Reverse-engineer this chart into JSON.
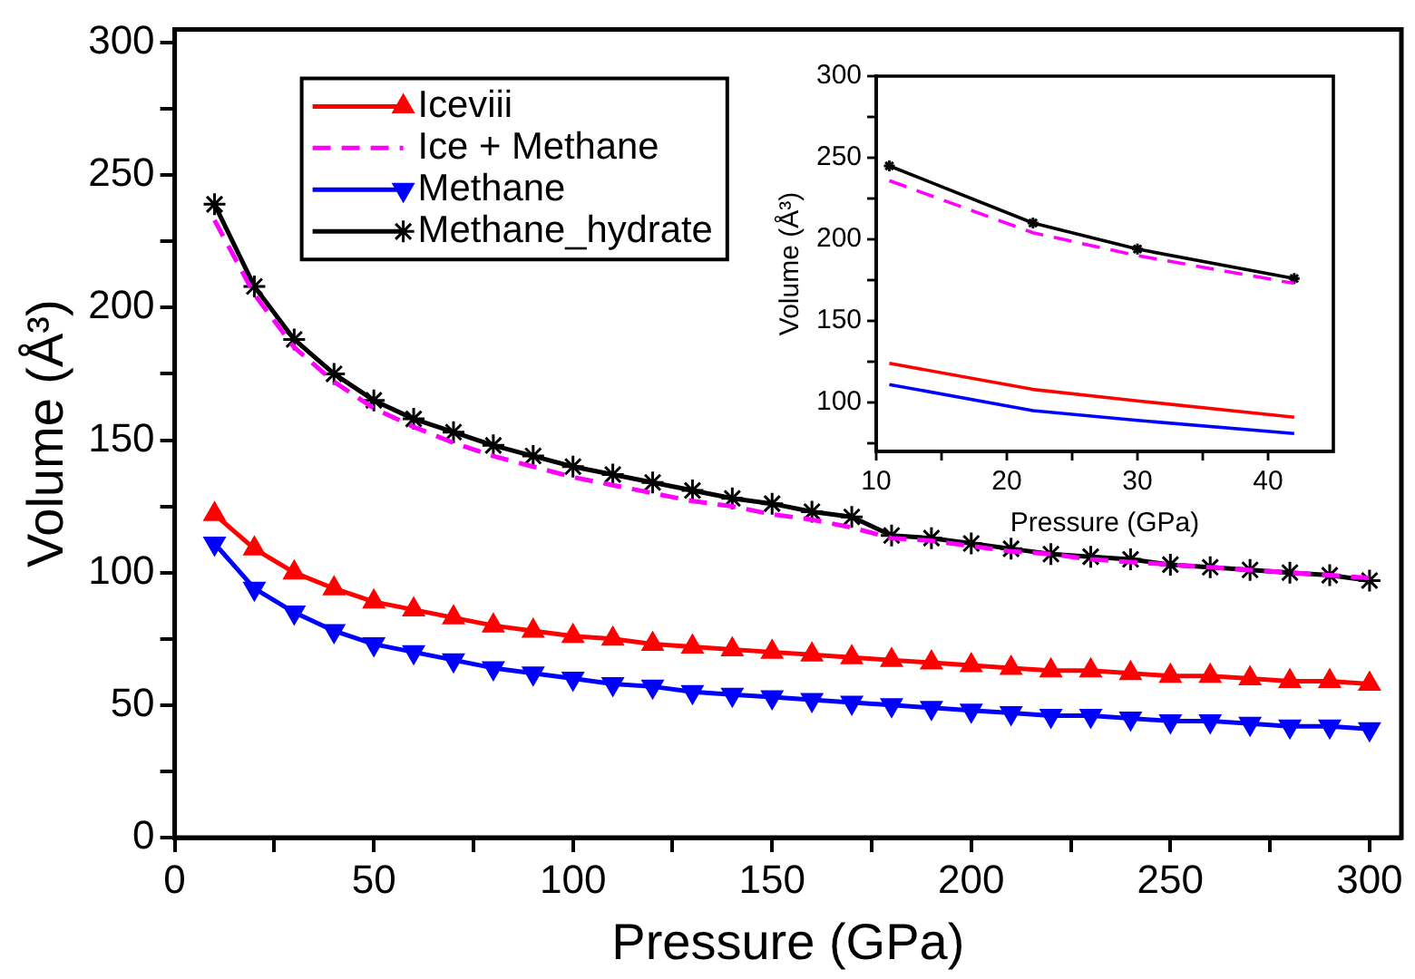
{
  "chart_data": [
    {
      "type": "line",
      "xlabel": "Pressure (GPa)",
      "ylabel": "Volume (Å³)",
      "xlim": [
        0,
        308
      ],
      "ylim": [
        0,
        305
      ],
      "xticks": [
        0,
        {
          "value": 25,
          "label": null
        },
        50,
        {
          "value": 75,
          "label": null
        },
        100,
        {
          "value": 125,
          "label": null
        },
        150,
        {
          "value": 175,
          "label": null
        },
        200,
        {
          "value": 225,
          "label": null
        },
        250,
        {
          "value": 275,
          "label": null
        },
        300
      ],
      "yticks": [
        0,
        {
          "value": 25,
          "label": null
        },
        50,
        {
          "value": 75,
          "label": null
        },
        100,
        {
          "value": 125,
          "label": null
        },
        150,
        {
          "value": 175,
          "label": null
        },
        200,
        {
          "value": 225,
          "label": null
        },
        250,
        {
          "value": 275,
          "label": null
        },
        300
      ],
      "grid": false,
      "legend": "top left",
      "x": [
        10,
        20,
        30,
        40,
        50,
        60,
        70,
        80,
        90,
        100,
        110,
        120,
        130,
        140,
        150,
        160,
        170,
        180,
        190,
        200,
        210,
        220,
        230,
        240,
        250,
        260,
        270,
        280,
        290,
        300
      ],
      "series": [
        {
          "name": "Iceviii",
          "color": "#ff0000",
          "marker": "triangle",
          "line_style": "solid",
          "values": [
            122,
            109,
            100,
            94,
            89,
            86,
            83,
            80,
            78,
            76,
            75,
            73,
            72,
            71,
            70,
            69,
            68,
            67,
            66,
            65,
            64,
            63,
            63,
            62,
            61,
            61,
            60,
            59,
            59,
            58
          ]
        },
        {
          "name": "Ice + Methane",
          "color": "#ff00ff",
          "marker": "none",
          "line_style": "dashed",
          "values": [
            233,
            205,
            185,
            172,
            162,
            155,
            149,
            144,
            140,
            136,
            133,
            130,
            127,
            125,
            122,
            120,
            117,
            113,
            112,
            110,
            108,
            107,
            105,
            104,
            103,
            102,
            101,
            100,
            99,
            98
          ]
        },
        {
          "name": "Methane",
          "color": "#0000ff",
          "marker": "triangle-down",
          "line_style": "solid",
          "values": [
            111,
            94,
            85,
            78,
            73,
            70,
            67,
            64,
            62,
            60,
            58,
            57,
            55,
            54,
            53,
            52,
            51,
            50,
            49,
            48,
            47,
            46,
            46,
            45,
            44,
            44,
            43,
            42,
            42,
            41
          ]
        },
        {
          "name": "Methane_hydrate",
          "color": "#000000",
          "marker": "cross",
          "line_style": "solid",
          "values": [
            239,
            208,
            188,
            175,
            165,
            158,
            153,
            148,
            144,
            140,
            137,
            134,
            131,
            128,
            126,
            123,
            121,
            114,
            113,
            111,
            109,
            107,
            106,
            105,
            103,
            102,
            101,
            100,
            99,
            97
          ]
        }
      ]
    },
    {
      "type": "line",
      "xlabel": "Pressure (GPa)",
      "ylabel": "Volume (Å³)",
      "xlim": [
        10,
        45
      ],
      "ylim": [
        70,
        300
      ],
      "xticks": [
        10,
        {
          "value": 15,
          "label": null
        },
        20,
        {
          "value": 25,
          "label": null
        },
        30,
        {
          "value": 35,
          "label": null
        },
        40
      ],
      "yticks": [
        {
          "value": 75,
          "label": null
        },
        100,
        {
          "value": 125,
          "label": null
        },
        150,
        {
          "value": 175,
          "label": null
        },
        200,
        {
          "value": 225,
          "label": null
        },
        250,
        {
          "value": 275,
          "label": null
        },
        300
      ],
      "grid": false,
      "x": [
        11,
        22,
        30,
        42
      ],
      "series": [
        {
          "color": "#ff0000",
          "marker": "none",
          "line_style": "solid",
          "values": [
            124,
            108,
            101,
            91
          ]
        },
        {
          "color": "#ff00ff",
          "marker": "none",
          "line_style": "dashed",
          "values": [
            236,
            204,
            190,
            173
          ]
        },
        {
          "color": "#0000ff",
          "marker": "none",
          "line_style": "solid",
          "values": [
            111,
            95,
            89,
            81
          ]
        },
        {
          "color": "#000000",
          "marker": "cross",
          "line_style": "solid",
          "values": [
            245,
            210,
            194,
            176
          ]
        }
      ]
    }
  ]
}
